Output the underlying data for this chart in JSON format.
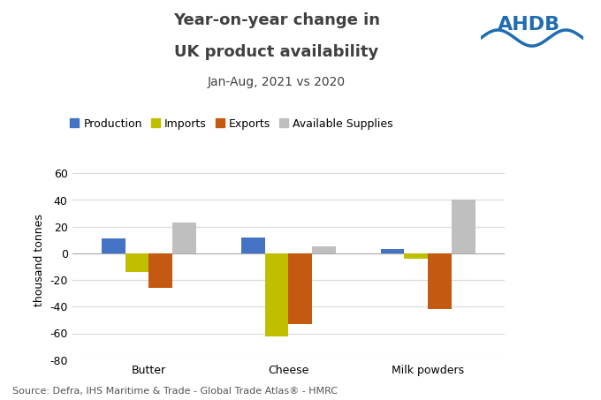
{
  "title_line1": "Year-on-year change in",
  "title_line2": "UK product availability",
  "subtitle": "Jan-Aug, 2021 vs 2020",
  "categories": [
    "Butter",
    "Cheese",
    "Milk powders"
  ],
  "series": {
    "Production": [
      11,
      12,
      3
    ],
    "Imports": [
      -14,
      -62,
      -4
    ],
    "Exports": [
      -26,
      -53,
      -42
    ],
    "Available Supplies": [
      23,
      5,
      40
    ]
  },
  "colors": {
    "Production": "#4472C4",
    "Imports": "#BFBF00",
    "Exports": "#C45911",
    "Available Supplies": "#BFBFBF"
  },
  "ylabel": "thousand tonnes",
  "ylim": [
    -80,
    70
  ],
  "yticks": [
    -80,
    -60,
    -40,
    -20,
    0,
    20,
    40,
    60
  ],
  "source": "Source: Defra, IHS Maritime & Trade - Global Trade Atlas® - HMRC",
  "bar_width": 0.17,
  "background_color": "#FFFFFF",
  "grid_color": "#D9D9D9",
  "title_fontsize": 13,
  "subtitle_fontsize": 10,
  "axis_fontsize": 9,
  "legend_fontsize": 9,
  "source_fontsize": 8,
  "title_color": "#404040"
}
